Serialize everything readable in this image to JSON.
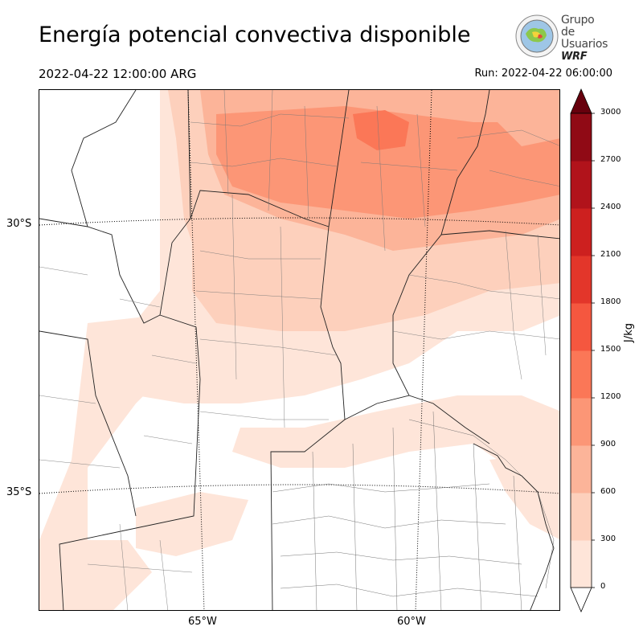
{
  "title": "Energía potencial convectiva disponible",
  "valid_time": "2022-04-22 12:00:00 ARG",
  "run": "Run: 2022-04-22 06:00:00",
  "logo": {
    "line1": "Grupo de",
    "line2": "Usuarios",
    "line3": "WRF"
  },
  "map": {
    "lat_labels": [
      "30°S",
      "35°S"
    ],
    "lon_labels": [
      "65°W",
      "60°W"
    ]
  },
  "colorbar": {
    "unit": "J/kg",
    "ticks": [
      "0",
      "300",
      "600",
      "900",
      "1200",
      "1500",
      "1800",
      "2100",
      "2400",
      "2700",
      "3000"
    ],
    "colors": [
      "#fee5d9",
      "#fdd0bc",
      "#fcb499",
      "#fc9676",
      "#fb7757",
      "#f5573f",
      "#e3362a",
      "#cd201f",
      "#b1131b",
      "#900a15",
      "#67000d"
    ]
  }
}
